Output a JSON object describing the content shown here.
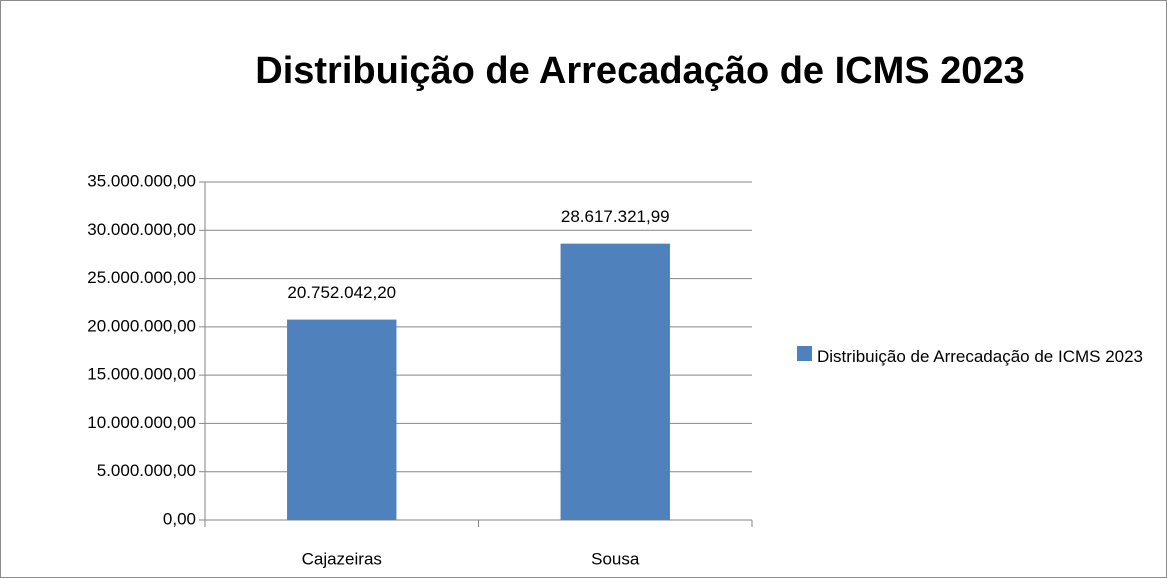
{
  "chart_data": {
    "type": "bar",
    "title": "Distribuição de Arrecadação de ICMS 2023",
    "categories": [
      "Cajazeiras",
      "Sousa"
    ],
    "series": [
      {
        "name": "Distribuição de Arrecadação de ICMS 2023",
        "color": "#4f81bd",
        "values": [
          20752042.2,
          28617321.99
        ],
        "value_labels": [
          "20.752.042,20",
          "28.617.321,99"
        ]
      }
    ],
    "ylim": [
      0,
      35000000
    ],
    "yticks": [
      {
        "value": 0,
        "label": "0,00"
      },
      {
        "value": 5000000,
        "label": "5.000.000,00"
      },
      {
        "value": 10000000,
        "label": "10.000.000,00"
      },
      {
        "value": 15000000,
        "label": "15.000.000,00"
      },
      {
        "value": 20000000,
        "label": "20.000.000,00"
      },
      {
        "value": 25000000,
        "label": "25.000.000,00"
      },
      {
        "value": 30000000,
        "label": "30.000.000,00"
      },
      {
        "value": 35000000,
        "label": "35.000.000,00"
      }
    ],
    "grid": true,
    "legend": "right"
  }
}
